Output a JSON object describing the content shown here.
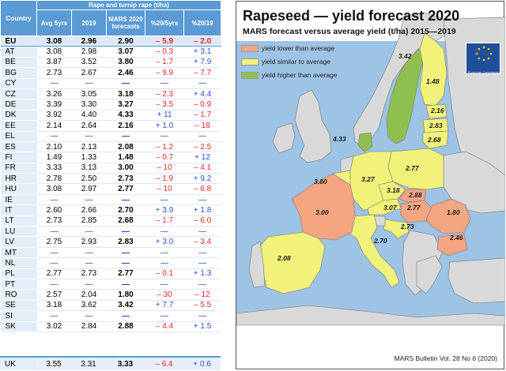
{
  "table": {
    "header_group": "Rape and turnip rape (t/ha)",
    "headers": {
      "country": "Country",
      "avg": "Avg 5yrs",
      "y2019": "2019",
      "forecast": "MARS 2020 forecasts",
      "pct_avg": "%20/5yrs",
      "pct_2019": "%20/19"
    },
    "rows": [
      {
        "country": "EU",
        "avg": "3.08",
        "y2019": "2.96",
        "forecast": "2.90",
        "pct_avg": "– 5.9",
        "pct_2019": "– 2.0"
      },
      {
        "country": "AT",
        "avg": "3.08",
        "y2019": "2.98",
        "forecast": "3.07",
        "pct_avg": "– 0.3",
        "pct_2019": "+ 3.1"
      },
      {
        "country": "BE",
        "avg": "3.87",
        "y2019": "3.52",
        "forecast": "3.80",
        "pct_avg": "– 1.7",
        "pct_2019": "+ 7.9"
      },
      {
        "country": "BG",
        "avg": "2.73",
        "y2019": "2.67",
        "forecast": "2.46",
        "pct_avg": "– 9.9",
        "pct_2019": "– 7.7"
      },
      {
        "country": "CY",
        "avg": "—",
        "y2019": "—",
        "forecast": "—",
        "pct_avg": "—",
        "pct_2019": "—"
      },
      {
        "country": "CZ",
        "avg": "3.26",
        "y2019": "3.05",
        "forecast": "3.18",
        "pct_avg": "– 2.3",
        "pct_2019": "+ 4.4"
      },
      {
        "country": "DE",
        "avg": "3.39",
        "y2019": "3.30",
        "forecast": "3.27",
        "pct_avg": "– 3.5",
        "pct_2019": "– 0.9"
      },
      {
        "country": "DK",
        "avg": "3.92",
        "y2019": "4.40",
        "forecast": "4.33",
        "pct_avg": "+ 11",
        "pct_2019": "– 1.7"
      },
      {
        "country": "EE",
        "avg": "2.14",
        "y2019": "2.64",
        "forecast": "2.16",
        "pct_avg": "+ 1.0",
        "pct_2019": "– 18"
      },
      {
        "country": "EL",
        "avg": "—",
        "y2019": "—",
        "forecast": "—",
        "pct_avg": "—",
        "pct_2019": "—"
      },
      {
        "country": "ES",
        "avg": "2.10",
        "y2019": "2.13",
        "forecast": "2.08",
        "pct_avg": "– 1.2",
        "pct_2019": "– 2.5"
      },
      {
        "country": "FI",
        "avg": "1.49",
        "y2019": "1.33",
        "forecast": "1.48",
        "pct_avg": "– 0.7",
        "pct_2019": "+ 12"
      },
      {
        "country": "FR",
        "avg": "3.33",
        "y2019": "3.13",
        "forecast": "3.00",
        "pct_avg": "– 10",
        "pct_2019": "– 4.1"
      },
      {
        "country": "HR",
        "avg": "2.78",
        "y2019": "2.50",
        "forecast": "2.73",
        "pct_avg": "– 1.9",
        "pct_2019": "+ 9.2"
      },
      {
        "country": "HU",
        "avg": "3.08",
        "y2019": "2.97",
        "forecast": "2.77",
        "pct_avg": "– 10",
        "pct_2019": "– 6.8"
      },
      {
        "country": "IE",
        "avg": "—",
        "y2019": "—",
        "forecast": "—",
        "pct_avg": "—",
        "pct_2019": "—"
      },
      {
        "country": "IT",
        "avg": "2.60",
        "y2019": "2.66",
        "forecast": "2.70",
        "pct_avg": "+ 3.9",
        "pct_2019": "+ 1.8"
      },
      {
        "country": "LT",
        "avg": "2.73",
        "y2019": "2.85",
        "forecast": "2.68",
        "pct_avg": "– 1.7",
        "pct_2019": "– 6.0"
      },
      {
        "country": "LU",
        "avg": "—",
        "y2019": "—",
        "forecast": "—",
        "pct_avg": "—",
        "pct_2019": "—"
      },
      {
        "country": "LV",
        "avg": "2.75",
        "y2019": "2.93",
        "forecast": "2.83",
        "pct_avg": "+ 3.0",
        "pct_2019": "– 3.4"
      },
      {
        "country": "MT",
        "avg": "—",
        "y2019": "—",
        "forecast": "—",
        "pct_avg": "—",
        "pct_2019": "—"
      },
      {
        "country": "NL",
        "avg": "—",
        "y2019": "—",
        "forecast": "—",
        "pct_avg": "—",
        "pct_2019": "—"
      },
      {
        "country": "PL",
        "avg": "2.77",
        "y2019": "2.73",
        "forecast": "2.77",
        "pct_avg": "– 0.1",
        "pct_2019": "+ 1.3"
      },
      {
        "country": "PT",
        "avg": "—",
        "y2019": "—",
        "forecast": "—",
        "pct_avg": "—",
        "pct_2019": "—"
      },
      {
        "country": "RO",
        "avg": "2.57",
        "y2019": "2.04",
        "forecast": "1.80",
        "pct_avg": "– 30",
        "pct_2019": "– 12"
      },
      {
        "country": "SE",
        "avg": "3.18",
        "y2019": "3.62",
        "forecast": "3.42",
        "pct_avg": "+ 7.7",
        "pct_2019": "– 5.5"
      },
      {
        "country": "SI",
        "avg": "—",
        "y2019": "—",
        "forecast": "—",
        "pct_avg": "—",
        "pct_2019": "—"
      },
      {
        "country": "SK",
        "avg": "3.02",
        "y2019": "2.84",
        "forecast": "2.88",
        "pct_avg": "– 4.4",
        "pct_2019": "+ 1.5"
      }
    ],
    "uk_row": {
      "country": "UK",
      "avg": "3.55",
      "y2019": "3.31",
      "forecast": "3.33",
      "pct_avg": "– 6.4",
      "pct_2019": "+ 0.6"
    }
  },
  "map": {
    "title": "Rapeseed — yield forecast 2020",
    "subtitle": "MARS forecast versus average yield (t/ha) 2015—2019",
    "legend": [
      {
        "label": "yield lower than average",
        "color": "#f4a582"
      },
      {
        "label": "yield similar to average",
        "color": "#f1f27a"
      },
      {
        "label": "yield higher than average",
        "color": "#8fbf4f"
      }
    ],
    "source": "MARS Bulletin Vol. 28 No 6 (2020)",
    "logo_caption": "European Commission",
    "value_labels": {
      "SE": "3.42",
      "FI": "1.48",
      "EE": "2.16",
      "LV": "2.83",
      "LT": "2.68",
      "DK": "4.33",
      "PL": "2.77",
      "DE": "3.27",
      "BE": "3.80",
      "CZ": "3.18",
      "SK": "2.88",
      "AT": "3.07",
      "HU": "2.77",
      "FR": "3.00",
      "RO": "1.80",
      "HR": "2.73",
      "IT": "2.70",
      "BG": "2.46",
      "ES": "2.08"
    },
    "colors": {
      "sea": "#9dc3e6",
      "land_other": "#d9d9d9",
      "lower": "#f4a582",
      "similar": "#f1f27a",
      "higher": "#8fbf4f",
      "border": "#777777"
    }
  }
}
